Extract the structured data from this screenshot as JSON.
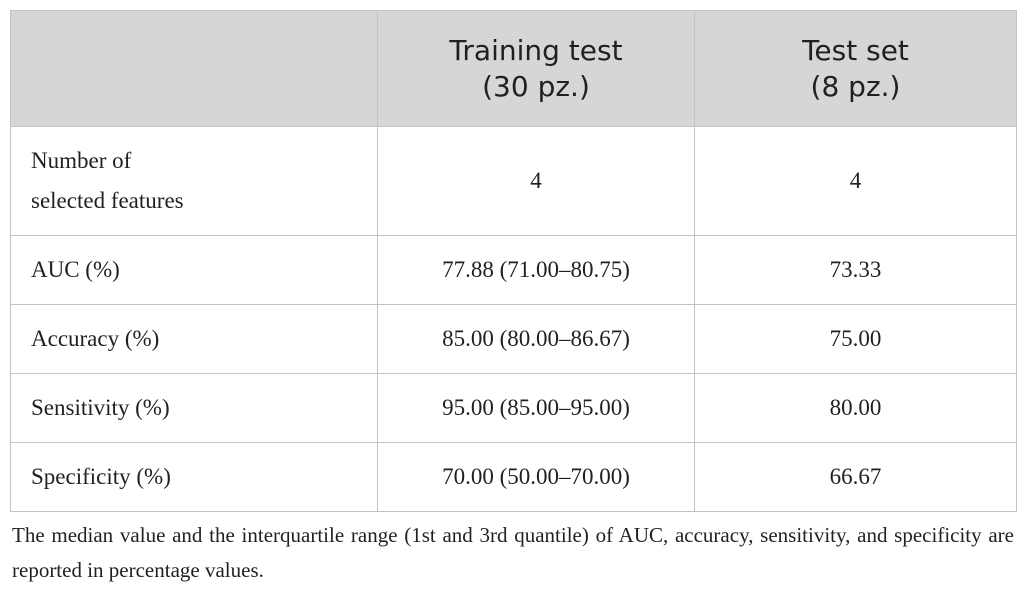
{
  "table": {
    "columns": [
      {
        "lines": [
          "Training test",
          "(30 pz.)"
        ]
      },
      {
        "lines": [
          "Test set",
          "(8 pz.)"
        ]
      }
    ],
    "rows": [
      {
        "label": [
          "Number of",
          "selected features"
        ],
        "cells": [
          "4",
          "4"
        ]
      },
      {
        "label": [
          "AUC (%)"
        ],
        "cells": [
          "77.88 (71.00–80.75)",
          "73.33"
        ]
      },
      {
        "label": [
          "Accuracy (%)"
        ],
        "cells": [
          "85.00 (80.00–86.67)",
          "75.00"
        ]
      },
      {
        "label": [
          "Sensitivity (%)"
        ],
        "cells": [
          "95.00 (85.00–95.00)",
          "80.00"
        ]
      },
      {
        "label": [
          "Specificity (%)"
        ],
        "cells": [
          "70.00 (50.00–70.00)",
          "66.67"
        ]
      }
    ]
  },
  "footnote": "The median value and the interquartile range (1st and 3rd quantile) of AUC, accuracy, sensitivity, and specificity are reported in percentage values."
}
